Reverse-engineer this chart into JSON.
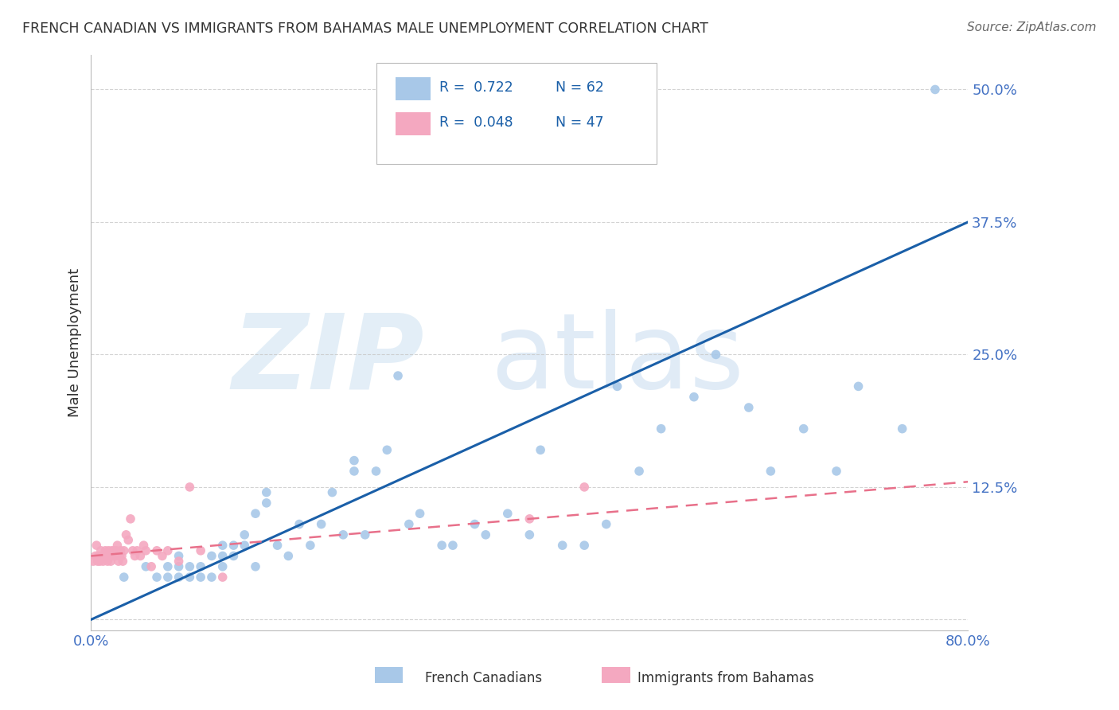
{
  "title": "FRENCH CANADIAN VS IMMIGRANTS FROM BAHAMAS MALE UNEMPLOYMENT CORRELATION CHART",
  "source": "Source: ZipAtlas.com",
  "ylabel": "Male Unemployment",
  "xlim": [
    0.0,
    0.8
  ],
  "ylim": [
    -0.01,
    0.533
  ],
  "yticks": [
    0.0,
    0.125,
    0.25,
    0.375,
    0.5
  ],
  "ytick_labels": [
    "",
    "12.5%",
    "25.0%",
    "37.5%",
    "50.0%"
  ],
  "xticks": [
    0.0,
    0.8
  ],
  "xtick_labels": [
    "0.0%",
    "80.0%"
  ],
  "legend_r1": "R =  0.722",
  "legend_n1": "N = 62",
  "legend_r2": "R =  0.048",
  "legend_n2": "N = 47",
  "blue_color": "#A8C8E8",
  "pink_color": "#F4A8C0",
  "line_blue": "#1A5FA8",
  "line_pink": "#E8708A",
  "title_color": "#333333",
  "tick_color": "#4472C4",
  "blue_points_x": [
    0.03,
    0.05,
    0.06,
    0.07,
    0.07,
    0.08,
    0.08,
    0.08,
    0.09,
    0.09,
    0.1,
    0.1,
    0.11,
    0.11,
    0.12,
    0.12,
    0.12,
    0.13,
    0.13,
    0.14,
    0.14,
    0.15,
    0.15,
    0.16,
    0.16,
    0.17,
    0.18,
    0.19,
    0.2,
    0.21,
    0.22,
    0.23,
    0.24,
    0.24,
    0.25,
    0.26,
    0.27,
    0.28,
    0.29,
    0.3,
    0.32,
    0.33,
    0.35,
    0.36,
    0.38,
    0.4,
    0.41,
    0.43,
    0.45,
    0.47,
    0.48,
    0.5,
    0.52,
    0.55,
    0.57,
    0.6,
    0.62,
    0.65,
    0.68,
    0.7,
    0.74,
    0.77
  ],
  "blue_points_y": [
    0.04,
    0.05,
    0.04,
    0.04,
    0.05,
    0.04,
    0.05,
    0.06,
    0.04,
    0.05,
    0.04,
    0.05,
    0.04,
    0.06,
    0.05,
    0.06,
    0.07,
    0.06,
    0.07,
    0.07,
    0.08,
    0.05,
    0.1,
    0.11,
    0.12,
    0.07,
    0.06,
    0.09,
    0.07,
    0.09,
    0.12,
    0.08,
    0.14,
    0.15,
    0.08,
    0.14,
    0.16,
    0.23,
    0.09,
    0.1,
    0.07,
    0.07,
    0.09,
    0.08,
    0.1,
    0.08,
    0.16,
    0.07,
    0.07,
    0.09,
    0.22,
    0.14,
    0.18,
    0.21,
    0.25,
    0.2,
    0.14,
    0.18,
    0.14,
    0.22,
    0.18,
    0.5
  ],
  "pink_points_x": [
    0.002,
    0.004,
    0.005,
    0.006,
    0.007,
    0.008,
    0.009,
    0.01,
    0.011,
    0.012,
    0.013,
    0.014,
    0.015,
    0.016,
    0.017,
    0.018,
    0.019,
    0.02,
    0.021,
    0.022,
    0.023,
    0.024,
    0.025,
    0.026,
    0.027,
    0.028,
    0.029,
    0.03,
    0.032,
    0.034,
    0.036,
    0.038,
    0.04,
    0.042,
    0.045,
    0.048,
    0.05,
    0.055,
    0.06,
    0.065,
    0.07,
    0.08,
    0.09,
    0.1,
    0.12,
    0.4,
    0.45
  ],
  "pink_points_y": [
    0.055,
    0.06,
    0.07,
    0.055,
    0.06,
    0.055,
    0.065,
    0.06,
    0.055,
    0.06,
    0.065,
    0.06,
    0.055,
    0.065,
    0.06,
    0.055,
    0.065,
    0.06,
    0.065,
    0.06,
    0.065,
    0.07,
    0.055,
    0.06,
    0.065,
    0.06,
    0.055,
    0.065,
    0.08,
    0.075,
    0.095,
    0.065,
    0.06,
    0.065,
    0.06,
    0.07,
    0.065,
    0.05,
    0.065,
    0.06,
    0.065,
    0.055,
    0.125,
    0.065,
    0.04,
    0.095,
    0.125
  ],
  "blue_line_x": [
    0.0,
    0.8
  ],
  "blue_line_y": [
    0.0,
    0.375
  ],
  "pink_line_x": [
    0.0,
    0.8
  ],
  "pink_line_y": [
    0.06,
    0.13
  ],
  "background_color": "#FFFFFF",
  "grid_color": "#C8C8C8",
  "marker_size": 70
}
